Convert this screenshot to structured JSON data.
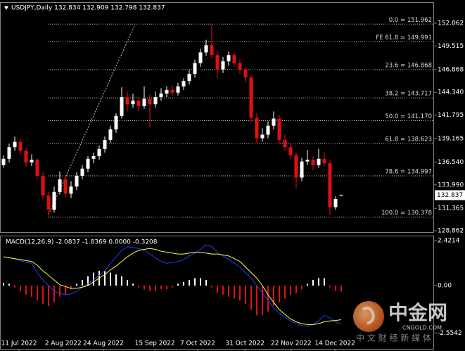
{
  "chart_data": [
    {
      "type": "candlestick",
      "title": "USDJPY,Daily  132.834 132.909 132.798 132.837",
      "up_color": "#ffffff",
      "down_color": "#e01010",
      "open": [
        136.2,
        136.9,
        138.2,
        138.8,
        137.8,
        136.5,
        136.8,
        135.0,
        132.8,
        131.2,
        133.2,
        134.6,
        133.0,
        133.8,
        135.0,
        135.8,
        136.9,
        137.2,
        138.0,
        139.0,
        140.2,
        141.7,
        143.8,
        143.0,
        143.4,
        142.8,
        143.6,
        143.0,
        143.8,
        144.2,
        144.6,
        144.3,
        145.0,
        145.6,
        146.4,
        147.6,
        148.8,
        149.6,
        148.5,
        146.9,
        147.8,
        148.5,
        147.6,
        146.9,
        146.0,
        141.5,
        139.2,
        139.6,
        140.6,
        141.4,
        139.0,
        138.2,
        137.3,
        134.8,
        136.6,
        136.8,
        136.2,
        136.9,
        136.4,
        131.5,
        132.834
      ],
      "high": [
        137.3,
        138.6,
        139.4,
        139.1,
        138.1,
        137.4,
        137.0,
        135.4,
        133.2,
        133.8,
        135.5,
        135.0,
        134.4,
        135.4,
        136.2,
        137.2,
        137.6,
        138.4,
        139.4,
        140.6,
        142.0,
        144.9,
        144.4,
        144.2,
        143.8,
        145.0,
        144.1,
        144.4,
        144.8,
        145.0,
        145.1,
        145.4,
        145.9,
        146.8,
        148.0,
        149.2,
        150.2,
        151.962,
        149.0,
        148.3,
        148.9,
        148.8,
        148.0,
        147.2,
        146.4,
        142.0,
        140.3,
        141.1,
        142.2,
        141.8,
        139.6,
        138.7,
        137.6,
        137.0,
        137.9,
        137.2,
        138.0,
        137.7,
        136.8,
        132.7,
        132.909
      ],
      "low": [
        135.9,
        136.5,
        137.8,
        137.4,
        136.0,
        136.1,
        134.6,
        132.4,
        130.378,
        130.9,
        132.9,
        132.6,
        132.5,
        133.4,
        134.6,
        135.4,
        136.4,
        136.8,
        137.6,
        138.7,
        139.8,
        141.4,
        142.2,
        142.6,
        142.2,
        142.5,
        140.4,
        142.6,
        143.4,
        143.8,
        143.9,
        144.0,
        144.6,
        145.2,
        146.0,
        147.2,
        148.4,
        148.1,
        145.9,
        146.5,
        147.3,
        147.2,
        146.4,
        145.4,
        141.0,
        138.6,
        138.8,
        139.2,
        140.2,
        138.6,
        137.8,
        136.9,
        133.6,
        134.4,
        136.2,
        135.6,
        135.9,
        136.0,
        130.6,
        131.2,
        132.798
      ],
      "close": [
        136.9,
        138.2,
        138.8,
        137.8,
        136.5,
        136.8,
        135.0,
        132.8,
        131.2,
        133.2,
        134.6,
        133.0,
        133.8,
        135.0,
        135.8,
        136.9,
        137.2,
        138.0,
        139.0,
        140.2,
        141.7,
        143.8,
        143.0,
        143.4,
        142.8,
        143.6,
        143.0,
        143.8,
        144.2,
        144.6,
        144.3,
        145.0,
        145.6,
        146.4,
        147.6,
        148.8,
        149.6,
        148.5,
        146.9,
        147.8,
        148.5,
        147.6,
        146.9,
        146.0,
        141.5,
        139.2,
        139.6,
        140.6,
        141.4,
        139.0,
        138.2,
        137.3,
        134.8,
        136.6,
        136.8,
        136.2,
        136.9,
        136.4,
        131.5,
        132.4,
        132.837
      ],
      "current_price": 132.837,
      "xlim": [
        -0.625,
        76.5
      ],
      "ylim": [
        128.626,
        154.421
      ],
      "yticks": [
        152.062,
        149.515,
        146.868,
        {
          "value": 144.34,
          "label": "144.340"
        },
        141.795,
        139.165,
        {
          "value": 136.54,
          "label": "136.540"
        },
        {
          "value": 133.99,
          "label": "133.990"
        },
        131.365,
        128.862
      ],
      "levels": [
        {
          "label": "0.0 = 151.962",
          "value": 151.962
        },
        {
          "label": "FE 61.8 = 149.991",
          "value": 149.991
        },
        {
          "label": "23.6 = 146.868",
          "value": 146.868
        },
        {
          "label": "38.2 = 143.717",
          "value": 143.717
        },
        {
          "label": "50.0 = 141.170",
          "value": 141.17
        },
        {
          "label": "61.8 = 138.623",
          "value": 138.623
        },
        {
          "label": "78.6 = 134.997",
          "value": 134.997
        },
        {
          "label": "100.0 = 130.378",
          "value": 130.378
        }
      ]
    },
    {
      "type": "macd",
      "title": "MACD(12,26,9) -2.0837 -1.8369 0.0000 -0.3208",
      "xlim": [
        -0.625,
        76.5
      ],
      "y2lim": [
        -3.447,
        2.652
      ],
      "y2ticks": [
        2.4214,
        {
          "value": 0,
          "label": "0.00"
        },
        -2.5542
      ],
      "xticks": [
        {
          "value": 2.75,
          "label": "11 Jul 2022"
        },
        {
          "value": 10.6,
          "label": "2 Aug 2022"
        },
        {
          "value": 17.75,
          "label": "24 Aug 2022"
        },
        {
          "value": 26.9,
          "label": "15 Sep 2022"
        },
        {
          "value": 34.5,
          "label": "7 Oct 2022"
        },
        {
          "value": 42.9,
          "label": "31 Oct 2022"
        },
        {
          "value": 51.1,
          "label": "22 Nov 2022"
        },
        {
          "value": 58.9,
          "label": "14 Dec 2022"
        }
      ],
      "histogram": {
        "up_color": "#ffffff",
        "down_color": "#e01010",
        "values": [
          0.15,
          0.1,
          -0.1,
          -0.3,
          -0.5,
          -0.6,
          -0.8,
          -1.0,
          -1.1,
          -0.9,
          -0.6,
          -0.5,
          -0.2,
          0.1,
          0.3,
          0.5,
          0.7,
          0.8,
          0.8,
          0.7,
          0.6,
          0.5,
          0.3,
          0.1,
          -0.1,
          -0.2,
          -0.3,
          -0.3,
          -0.2,
          -0.2,
          -0.1,
          0.1,
          0.2,
          0.3,
          0.4,
          0.4,
          0.3,
          -0.1,
          -0.4,
          -0.5,
          -0.6,
          -0.7,
          -0.8,
          -1.0,
          -1.3,
          -1.6,
          -1.6,
          -1.4,
          -1.1,
          -0.9,
          -0.7,
          -0.5,
          -0.4,
          -0.2,
          0.1,
          0.3,
          0.4,
          0.4,
          -0.1,
          -0.3,
          -0.3208
        ]
      },
      "series": [
        {
          "color": "#1e3cff",
          "values": [
            1.55,
            1.5,
            1.45,
            1.35,
            1.25,
            1.2,
            0.7,
            0.3,
            0.0,
            -0.3,
            -0.4,
            -0.5,
            -0.45,
            -0.3,
            -0.1,
            0.1,
            0.3,
            0.55,
            0.8,
            1.2,
            1.55,
            1.9,
            2.1,
            2.05,
            2.0,
            1.9,
            1.7,
            1.5,
            1.3,
            1.2,
            1.25,
            1.3,
            1.4,
            1.6,
            1.75,
            1.95,
            2.2,
            2.1,
            1.8,
            1.6,
            1.4,
            1.2,
            1.0,
            0.7,
            0.4,
            0.0,
            -0.4,
            -0.8,
            -1.2,
            -1.5,
            -1.7,
            -1.9,
            -2.05,
            -2.15,
            -2.2,
            -2.1,
            -1.9,
            -1.6,
            -1.75,
            -1.95,
            -2.0837
          ]
        },
        {
          "color": "#ffff40",
          "values": [
            1.55,
            1.5,
            1.45,
            1.4,
            1.35,
            1.3,
            1.1,
            0.8,
            0.55,
            0.3,
            0.05,
            -0.05,
            -0.15,
            -0.15,
            -0.08,
            0.0,
            0.2,
            0.4,
            0.6,
            0.85,
            1.05,
            1.3,
            1.55,
            1.75,
            1.9,
            1.95,
            2.0,
            1.95,
            1.85,
            1.8,
            1.75,
            1.7,
            1.7,
            1.75,
            1.8,
            1.8,
            1.75,
            1.7,
            1.7,
            1.65,
            1.6,
            1.45,
            1.3,
            1.0,
            0.7,
            0.4,
            0.0,
            -0.5,
            -0.9,
            -1.3,
            -1.55,
            -1.8,
            -1.95,
            -2.05,
            -2.1,
            -2.1,
            -2.05,
            -1.95,
            -1.9,
            -1.88,
            -1.8369
          ]
        }
      ]
    }
  ],
  "watermark": {
    "brand": "中金网",
    "site": "CNGOLD.COM",
    "slogan": "中 文 财 经 新 媒 体"
  }
}
